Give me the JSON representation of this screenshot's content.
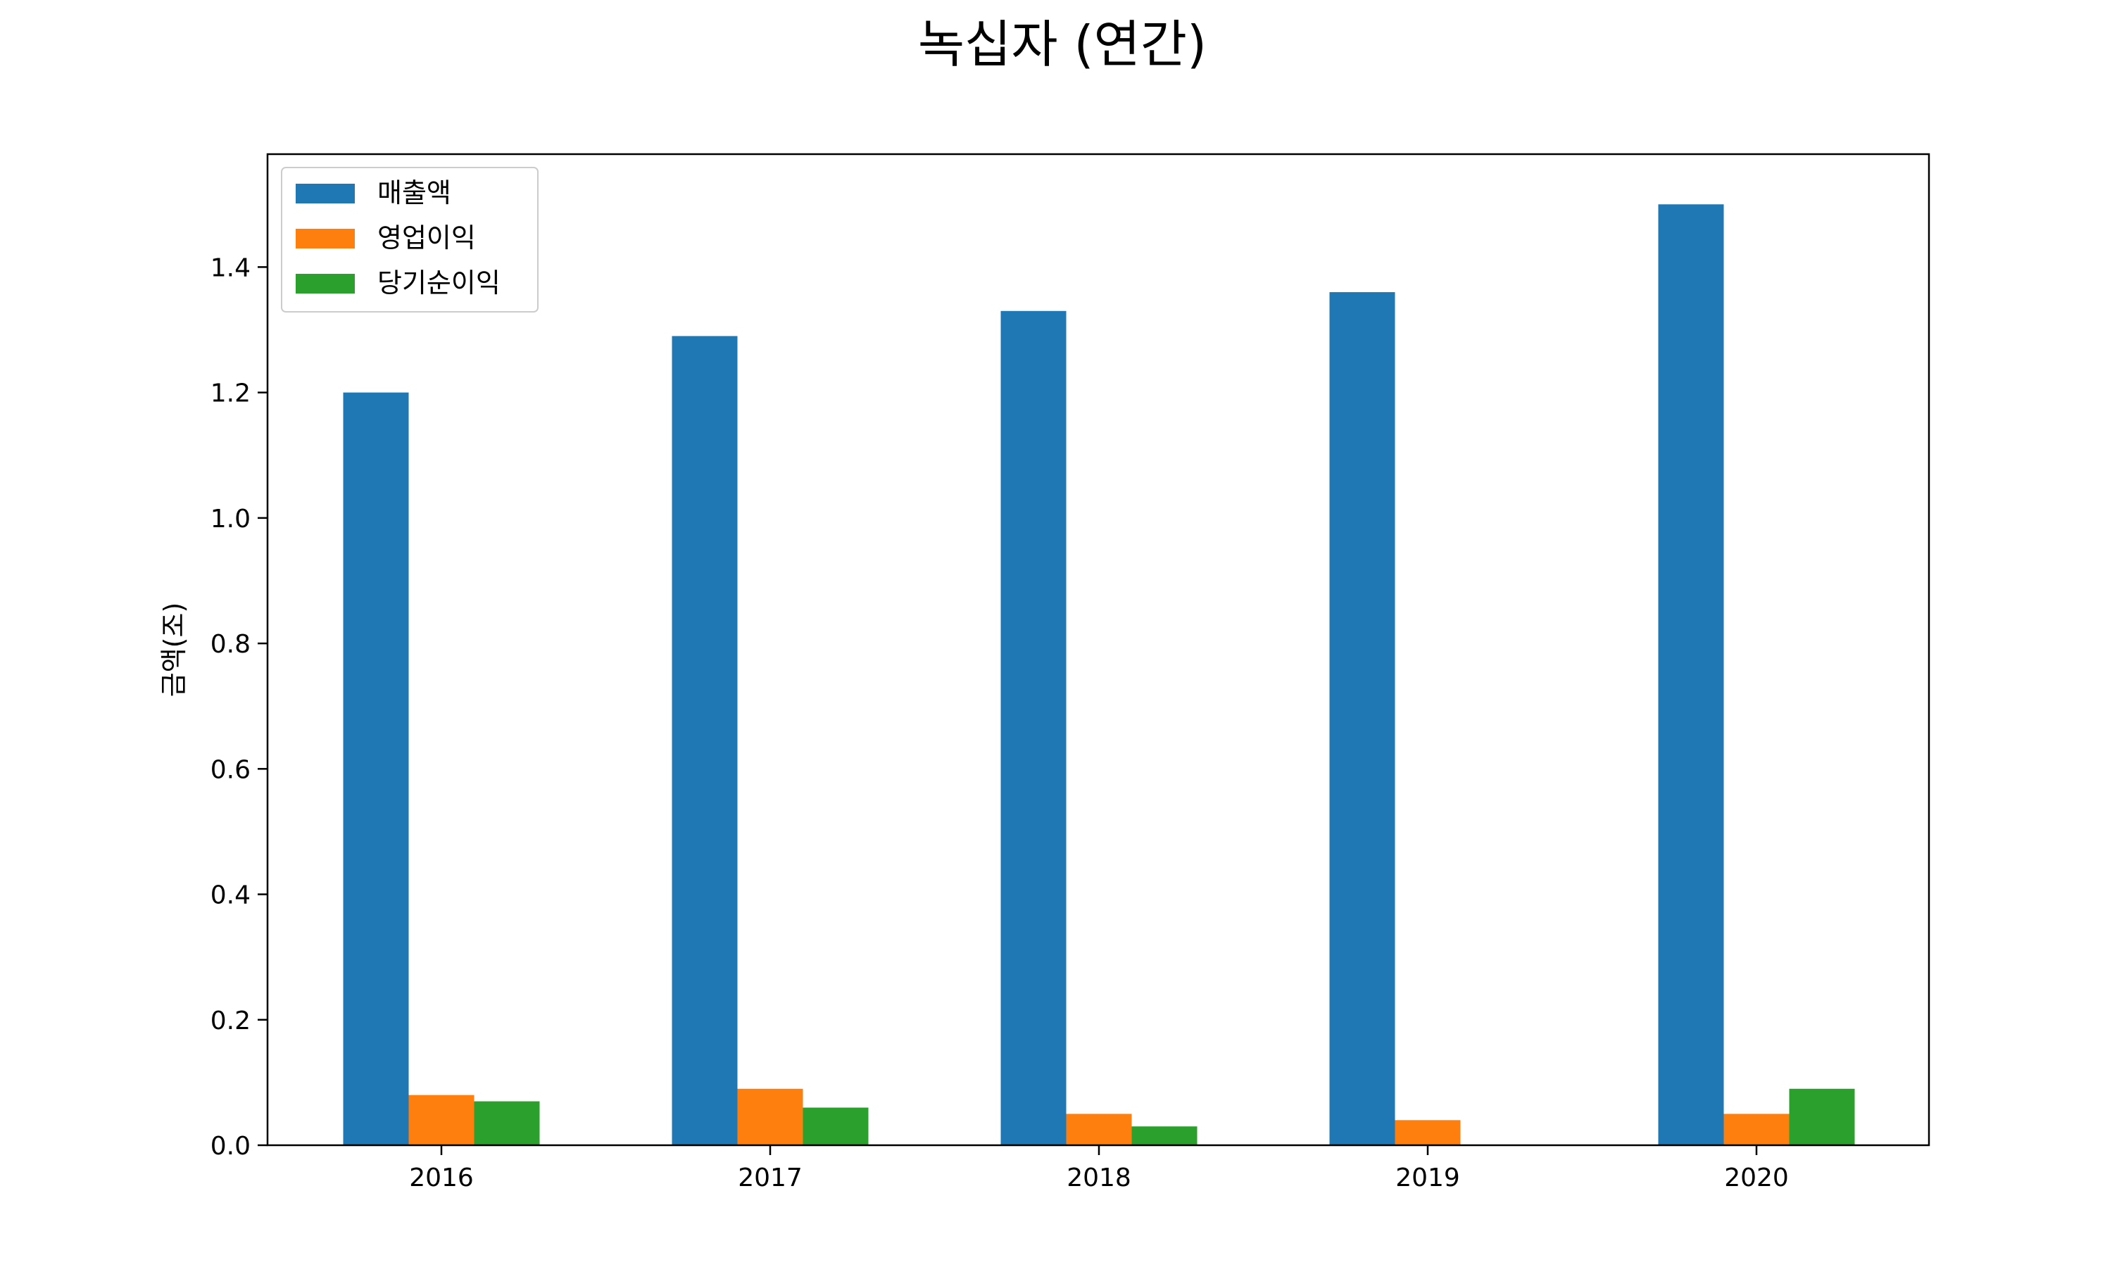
{
  "chart_data": {
    "type": "bar",
    "title": "녹십자 (연간)",
    "xlabel": "",
    "ylabel": "금액(조)",
    "categories": [
      "2016",
      "2017",
      "2018",
      "2019",
      "2020"
    ],
    "series": [
      {
        "name": "매출액",
        "color": "#1f77b4",
        "values": [
          1.2,
          1.29,
          1.33,
          1.36,
          1.5
        ]
      },
      {
        "name": "영업이익",
        "color": "#ff7f0e",
        "values": [
          0.08,
          0.09,
          0.05,
          0.04,
          0.05
        ]
      },
      {
        "name": "당기순이익",
        "color": "#2ca02c",
        "values": [
          0.07,
          0.06,
          0.03,
          0.0,
          0.09
        ]
      }
    ],
    "ylim": [
      0,
      1.58
    ],
    "yticks": [
      "0.0",
      "0.2",
      "0.4",
      "0.6",
      "0.8",
      "1.0",
      "1.2",
      "1.4"
    ],
    "legend_position": "top-left",
    "grid": false
  }
}
